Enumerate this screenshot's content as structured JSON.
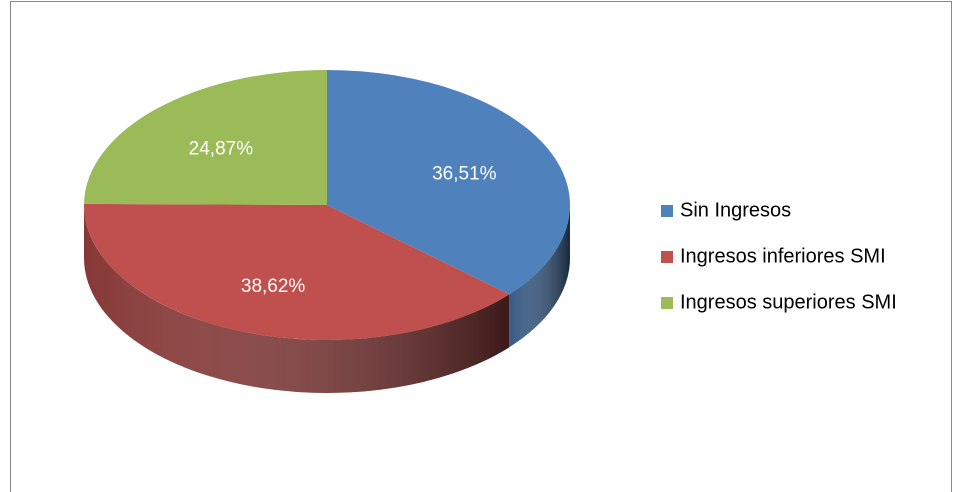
{
  "chart_data": {
    "type": "pie",
    "categories": [
      "Sin Ingresos",
      "Ingresos inferiores SMI",
      "Ingresos superiores SMI"
    ],
    "values": [
      36.51,
      38.62,
      24.87
    ],
    "value_labels": [
      "36,51%",
      "38,62%",
      "24,87%"
    ],
    "colors": [
      "#4f81bd",
      "#c0504d",
      "#9bbb59"
    ],
    "legend": "right"
  }
}
